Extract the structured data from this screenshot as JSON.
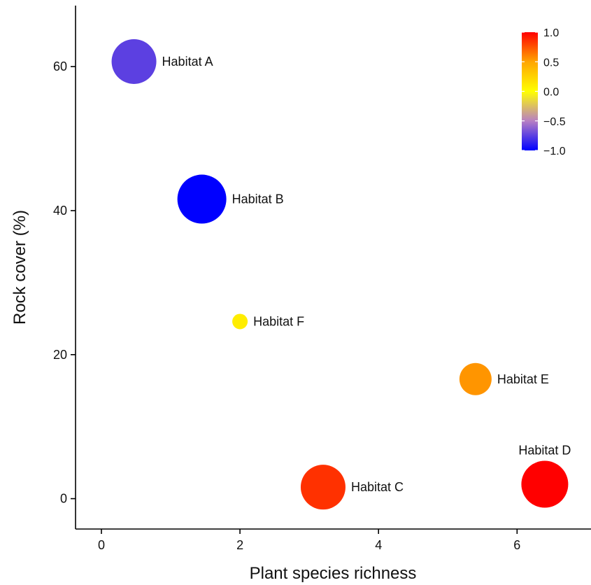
{
  "chart_data": {
    "type": "scatter",
    "title": "",
    "xlabel": "Plant species richness",
    "ylabel": "Rock cover (%)",
    "xlim": [
      -0.35,
      7.1
    ],
    "ylim": [
      -4,
      68
    ],
    "xticks": [
      0,
      2,
      4,
      6
    ],
    "yticks": [
      0,
      20,
      40,
      60
    ],
    "grid": false,
    "points": [
      {
        "label": "Habitat A",
        "x": 0.47,
        "y": 60.7,
        "size": 0.9,
        "color_value": -0.75,
        "label_position": "right"
      },
      {
        "label": "Habitat B",
        "x": 1.45,
        "y": 41.6,
        "size": 1.0,
        "color_value": -1.0,
        "label_position": "right"
      },
      {
        "label": "Habitat C",
        "x": 3.2,
        "y": 1.6,
        "size": 0.9,
        "color_value": 0.85,
        "label_position": "right"
      },
      {
        "label": "Habitat D",
        "x": 6.4,
        "y": 2.0,
        "size": 0.95,
        "color_value": 1.0,
        "label_position": "top"
      },
      {
        "label": "Habitat E",
        "x": 5.4,
        "y": 16.6,
        "size": 0.6,
        "color_value": 0.55,
        "label_position": "right"
      },
      {
        "label": "Habitat F",
        "x": 2.0,
        "y": 24.6,
        "size": 0.2,
        "color_value": 0.1,
        "label_position": "right"
      }
    ],
    "colorbar": {
      "min": -1.0,
      "max": 1.0,
      "ticks": [
        1.0,
        0.5,
        0.0,
        -0.5,
        -1.0
      ],
      "tick_labels": [
        "1.0",
        "0.5",
        "0.0",
        "−0.5",
        "−1.0"
      ],
      "colors": [
        "#0000ff",
        "#b87fc3",
        "#ffff00",
        "#ffa500",
        "#ff0000"
      ],
      "placement": "top-right"
    }
  }
}
